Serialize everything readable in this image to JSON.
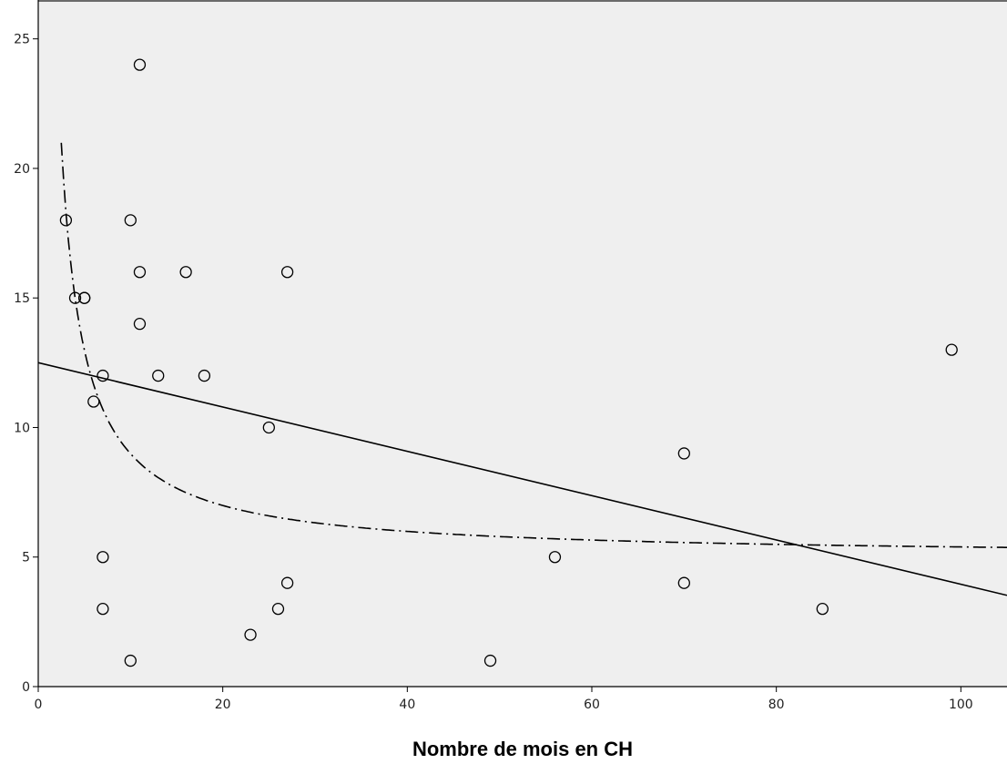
{
  "chart_data": {
    "type": "scatter",
    "title": "",
    "xlabel": "Nombre de mois en CH",
    "ylabel": "",
    "xlim": [
      0,
      105
    ],
    "ylim": [
      0,
      26.5
    ],
    "x_ticks": [
      0,
      20,
      40,
      60,
      80,
      100
    ],
    "y_ticks": [
      0,
      5,
      10,
      15,
      20,
      25
    ],
    "grid": false,
    "colors": {
      "plot_background": "#efefef",
      "marker_stroke": "#000000",
      "line": "#000000"
    },
    "points": [
      {
        "x": 3,
        "y": 18
      },
      {
        "x": 4,
        "y": 15
      },
      {
        "x": 5,
        "y": 15
      },
      {
        "x": 5,
        "y": 15
      },
      {
        "x": 6,
        "y": 11
      },
      {
        "x": 7,
        "y": 12
      },
      {
        "x": 7,
        "y": 5
      },
      {
        "x": 7,
        "y": 3
      },
      {
        "x": 10,
        "y": 18
      },
      {
        "x": 10,
        "y": 1
      },
      {
        "x": 11,
        "y": 24
      },
      {
        "x": 11,
        "y": 16
      },
      {
        "x": 11,
        "y": 14
      },
      {
        "x": 13,
        "y": 12
      },
      {
        "x": 16,
        "y": 16
      },
      {
        "x": 18,
        "y": 12
      },
      {
        "x": 23,
        "y": 2
      },
      {
        "x": 25,
        "y": 10
      },
      {
        "x": 26,
        "y": 3
      },
      {
        "x": 27,
        "y": 16
      },
      {
        "x": 27,
        "y": 4
      },
      {
        "x": 49,
        "y": 1
      },
      {
        "x": 56,
        "y": 5
      },
      {
        "x": 70,
        "y": 9
      },
      {
        "x": 70,
        "y": 4
      },
      {
        "x": 85,
        "y": 3
      },
      {
        "x": 99,
        "y": 13
      }
    ],
    "fit_lines": [
      {
        "style": "solid",
        "kind": "linear",
        "intercept": 12.5,
        "slope": -0.0855
      },
      {
        "style": "dash-dot",
        "kind": "inverse",
        "a": 4.99,
        "b": 40
      }
    ]
  }
}
